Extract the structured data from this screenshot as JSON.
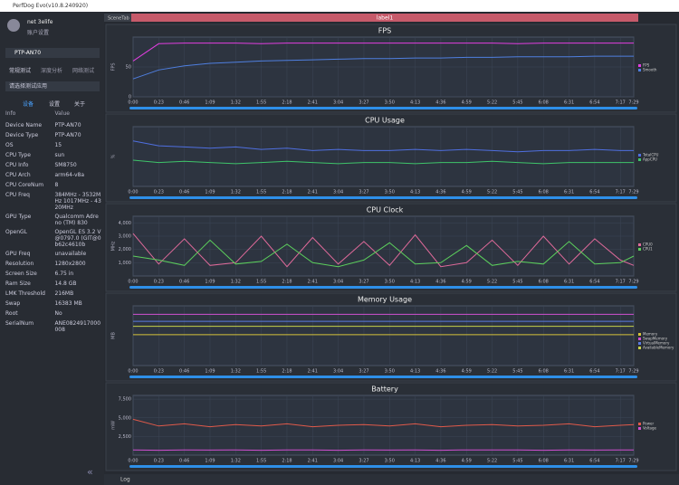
{
  "window": {
    "title": "PerfDog Evo(v10.8.240920)",
    "tabs": [
      "SceneTab",
      "label1"
    ],
    "log": "Log"
  },
  "account": {
    "name": "net 3elife",
    "settings": "账户设置"
  },
  "device": {
    "selected": "PTP-AN70",
    "modes": [
      "常规测试",
      "深度分析",
      "网络测试"
    ],
    "app_select": "请选择测试应用",
    "subtabs": [
      "设备",
      "设置",
      "关于"
    ],
    "header": [
      "Info",
      "Value"
    ],
    "rows": [
      [
        "Device Name",
        "PTP-AN70"
      ],
      [
        "Device Type",
        "PTP-AN70"
      ],
      [
        "OS",
        "15"
      ],
      [
        "CPU Type",
        "sun"
      ],
      [
        "CPU Info",
        "SM8750"
      ],
      [
        "CPU Arch",
        "arm64-v8a"
      ],
      [
        "CPU CoreNum",
        "8"
      ],
      [
        "CPU Freq",
        "384MHz - 3532MHz 1017MHz - 4320MHz"
      ],
      [
        "GPU Type",
        "Qualcomm Adreno (TM) 830"
      ],
      [
        "OpenGL",
        "OpenGL ES 3.2 V@0797.0 (GIT@0b62c4610b"
      ],
      [
        "GPU Freq",
        "unavailable"
      ],
      [
        "Resolution",
        "1280x2800"
      ],
      [
        "Screen Size",
        "6.75 in"
      ],
      [
        "Ram Size",
        "14.8 GB"
      ],
      [
        "LMK Threshold",
        "216MB"
      ],
      [
        "Swap",
        "16383 MB"
      ],
      [
        "Root",
        "No"
      ],
      [
        "SerialNum",
        "ANE0824917000008"
      ]
    ]
  },
  "chart_data": [
    {
      "type": "line",
      "title": "FPS",
      "y_label": "FPS",
      "xlim": [
        0,
        449
      ],
      "ylim": [
        0,
        100
      ],
      "yticks": [
        0,
        50
      ],
      "x": [
        0,
        23,
        46,
        69,
        92,
        115,
        138,
        161,
        184,
        207,
        230,
        253,
        276,
        299,
        322,
        345,
        368,
        391,
        414,
        437,
        449
      ],
      "xticks": [
        {
          "value": 0,
          "label": "0:00"
        },
        {
          "value": 23,
          "label": "0:23"
        },
        {
          "value": 46,
          "label": "0:46"
        },
        {
          "value": 69,
          "label": "1:09"
        },
        {
          "value": 92,
          "label": "1:32"
        },
        {
          "value": 115,
          "label": "1:55"
        },
        {
          "value": 138,
          "label": "2:18"
        },
        {
          "value": 161,
          "label": "2:41"
        },
        {
          "value": 184,
          "label": "3:04"
        },
        {
          "value": 207,
          "label": "3:27"
        },
        {
          "value": 230,
          "label": "3:50"
        },
        {
          "value": 253,
          "label": "4:13"
        },
        {
          "value": 276,
          "label": "4:36"
        },
        {
          "value": 299,
          "label": "4:59"
        },
        {
          "value": 322,
          "label": "5:22"
        },
        {
          "value": 345,
          "label": "5:45"
        },
        {
          "value": 368,
          "label": "6:08"
        },
        {
          "value": 391,
          "label": "6:31"
        },
        {
          "value": 414,
          "label": "6:54"
        },
        {
          "value": 437,
          "label": "7:17"
        },
        {
          "value": 449,
          "label": "7:29"
        }
      ],
      "series": [
        {
          "name": "FPS",
          "color": "#e23ee0",
          "values": [
            60,
            89,
            90,
            90,
            90,
            89,
            90,
            90,
            90,
            90,
            90,
            90,
            90,
            90,
            90,
            89,
            90,
            90,
            90,
            90,
            90
          ]
        },
        {
          "name": "Smooth",
          "color": "#4f7fe0",
          "values": [
            30,
            45,
            52,
            56,
            58,
            60,
            61,
            62,
            63,
            64,
            64,
            65,
            65,
            66,
            66,
            67,
            67,
            67,
            68,
            68,
            68
          ]
        }
      ]
    },
    {
      "type": "line",
      "title": "CPU Usage",
      "y_label": "%",
      "xlim": [
        0,
        449
      ],
      "ylim": [
        0,
        50
      ],
      "x": [
        0,
        23,
        46,
        69,
        92,
        115,
        138,
        161,
        184,
        207,
        230,
        253,
        276,
        299,
        322,
        345,
        368,
        391,
        414,
        437,
        449
      ],
      "xticks": [
        {
          "value": 0,
          "label": "0:00"
        },
        {
          "value": 23,
          "label": "0:23"
        },
        {
          "value": 46,
          "label": "0:46"
        },
        {
          "value": 69,
          "label": "1:09"
        },
        {
          "value": 92,
          "label": "1:32"
        },
        {
          "value": 115,
          "label": "1:55"
        },
        {
          "value": 138,
          "label": "2:18"
        },
        {
          "value": 161,
          "label": "2:41"
        },
        {
          "value": 184,
          "label": "3:04"
        },
        {
          "value": 207,
          "label": "3:27"
        },
        {
          "value": 230,
          "label": "3:50"
        },
        {
          "value": 253,
          "label": "4:13"
        },
        {
          "value": 276,
          "label": "4:36"
        },
        {
          "value": 299,
          "label": "4:59"
        },
        {
          "value": 322,
          "label": "5:22"
        },
        {
          "value": 345,
          "label": "5:45"
        },
        {
          "value": 368,
          "label": "6:08"
        },
        {
          "value": 391,
          "label": "6:31"
        },
        {
          "value": 414,
          "label": "6:54"
        },
        {
          "value": 437,
          "label": "7:17"
        },
        {
          "value": 449,
          "label": "7:29"
        }
      ],
      "series": [
        {
          "name": "TotalCPU",
          "color": "#4f6fe0",
          "values": [
            38,
            34,
            33,
            32,
            33,
            31,
            32,
            30,
            31,
            30,
            30,
            31,
            30,
            31,
            30,
            29,
            30,
            30,
            31,
            30,
            30
          ]
        },
        {
          "name": "AppCPU",
          "color": "#3fc46a",
          "values": [
            22,
            20,
            21,
            20,
            19,
            20,
            21,
            20,
            19,
            20,
            20,
            19,
            20,
            20,
            21,
            20,
            19,
            20,
            20,
            20,
            20
          ]
        }
      ]
    },
    {
      "type": "line",
      "title": "CPU Clock",
      "y_label": "MHz",
      "xlim": [
        0,
        449
      ],
      "ylim": [
        0,
        4500
      ],
      "yticks": [
        {
          "value": 1000,
          "label": "1,000"
        },
        {
          "value": 2000,
          "label": "2,000"
        },
        {
          "value": 3000,
          "label": "3,000"
        },
        {
          "value": 4000,
          "label": "4,000"
        }
      ],
      "x": [
        0,
        23,
        46,
        69,
        92,
        115,
        138,
        161,
        184,
        207,
        230,
        253,
        276,
        299,
        322,
        345,
        368,
        391,
        414,
        437,
        449
      ],
      "xticks": [
        {
          "value": 0,
          "label": "0:00"
        },
        {
          "value": 23,
          "label": "0:23"
        },
        {
          "value": 46,
          "label": "0:46"
        },
        {
          "value": 69,
          "label": "1:09"
        },
        {
          "value": 92,
          "label": "1:32"
        },
        {
          "value": 115,
          "label": "1:55"
        },
        {
          "value": 138,
          "label": "2:18"
        },
        {
          "value": 161,
          "label": "2:41"
        },
        {
          "value": 184,
          "label": "3:04"
        },
        {
          "value": 207,
          "label": "3:27"
        },
        {
          "value": 230,
          "label": "3:50"
        },
        {
          "value": 253,
          "label": "4:13"
        },
        {
          "value": 276,
          "label": "4:36"
        },
        {
          "value": 299,
          "label": "4:59"
        },
        {
          "value": 322,
          "label": "5:22"
        },
        {
          "value": 345,
          "label": "5:45"
        },
        {
          "value": 368,
          "label": "6:08"
        },
        {
          "value": 391,
          "label": "6:31"
        },
        {
          "value": 414,
          "label": "6:54"
        },
        {
          "value": 437,
          "label": "7:17"
        },
        {
          "value": 449,
          "label": "7:29"
        }
      ],
      "series": [
        {
          "name": "CPU0",
          "color": "#e06a9a",
          "values": [
            3200,
            900,
            2800,
            800,
            1000,
            3000,
            700,
            2900,
            900,
            2600,
            800,
            3100,
            700,
            1000,
            2700,
            800,
            3000,
            900,
            2800,
            1200,
            800
          ]
        },
        {
          "name": "CPU1",
          "color": "#5ccf5c",
          "values": [
            1500,
            1200,
            800,
            2700,
            900,
            1100,
            2400,
            1000,
            700,
            1200,
            2500,
            900,
            1000,
            2300,
            800,
            1100,
            900,
            2600,
            900,
            1000,
            1500
          ]
        }
      ]
    },
    {
      "type": "line",
      "title": "Memory Usage",
      "y_label": "MB",
      "xlim": [
        0,
        449
      ],
      "ylim": [
        0,
        12000
      ],
      "x": [
        0,
        23,
        46,
        69,
        92,
        115,
        138,
        161,
        184,
        207,
        230,
        253,
        276,
        299,
        322,
        345,
        368,
        391,
        414,
        437,
        449
      ],
      "xticks": [
        {
          "value": 0,
          "label": "0:00"
        },
        {
          "value": 23,
          "label": "0:23"
        },
        {
          "value": 46,
          "label": "0:46"
        },
        {
          "value": 69,
          "label": "1:09"
        },
        {
          "value": 92,
          "label": "1:32"
        },
        {
          "value": 115,
          "label": "1:55"
        },
        {
          "value": 138,
          "label": "2:18"
        },
        {
          "value": 161,
          "label": "2:41"
        },
        {
          "value": 184,
          "label": "3:04"
        },
        {
          "value": 207,
          "label": "3:27"
        },
        {
          "value": 230,
          "label": "3:50"
        },
        {
          "value": 253,
          "label": "4:13"
        },
        {
          "value": 276,
          "label": "4:36"
        },
        {
          "value": 299,
          "label": "4:59"
        },
        {
          "value": 322,
          "label": "5:22"
        },
        {
          "value": 345,
          "label": "5:45"
        },
        {
          "value": 368,
          "label": "6:08"
        },
        {
          "value": 391,
          "label": "6:31"
        },
        {
          "value": 414,
          "label": "6:54"
        },
        {
          "value": 437,
          "label": "7:17"
        },
        {
          "value": 449,
          "label": "7:29"
        }
      ],
      "series": [
        {
          "name": "Memory",
          "color": "#d6c23a",
          "values": [
            6200,
            6200,
            6200,
            6200,
            6200,
            6200,
            6200,
            6200,
            6200,
            6200,
            6200,
            6200,
            6200,
            6200,
            6200,
            6200,
            6200,
            6200,
            6200,
            6200,
            6200
          ]
        },
        {
          "name": "SwapMemory",
          "color": "#d04fd0",
          "values": [
            10300,
            10300,
            10300,
            10300,
            10300,
            10300,
            10300,
            10300,
            10300,
            10300,
            10300,
            10300,
            10300,
            10300,
            10300,
            10300,
            10300,
            10300,
            10300,
            10300,
            10300
          ]
        },
        {
          "name": "VirtualMemory",
          "color": "#5a7be0",
          "values": [
            8900,
            8900,
            8900,
            8900,
            8900,
            8900,
            8900,
            8900,
            8900,
            8900,
            8900,
            8900,
            8900,
            8900,
            8900,
            8900,
            8900,
            8900,
            8900,
            8900,
            8900
          ]
        },
        {
          "name": "AvailableMemory",
          "color": "#c8d24a",
          "values": [
            7900,
            7900,
            7900,
            7900,
            7900,
            7900,
            7900,
            7900,
            7900,
            7900,
            7900,
            7900,
            7900,
            7900,
            7900,
            7900,
            7900,
            7900,
            7900,
            7900,
            7900
          ]
        }
      ]
    },
    {
      "type": "line",
      "title": "Battery",
      "y_label": "mW",
      "xlim": [
        0,
        449
      ],
      "ylim": [
        0,
        8000
      ],
      "yticks": [
        {
          "value": 2500,
          "label": "2,500"
        },
        {
          "value": 5000,
          "label": "5,000"
        },
        {
          "value": 7500,
          "label": "7,500"
        }
      ],
      "x": [
        0,
        23,
        46,
        69,
        92,
        115,
        138,
        161,
        184,
        207,
        230,
        253,
        276,
        299,
        322,
        345,
        368,
        391,
        414,
        437,
        449
      ],
      "xticks": [
        {
          "value": 0,
          "label": "0:00"
        },
        {
          "value": 23,
          "label": "0:23"
        },
        {
          "value": 46,
          "label": "0:46"
        },
        {
          "value": 69,
          "label": "1:09"
        },
        {
          "value": 92,
          "label": "1:32"
        },
        {
          "value": 115,
          "label": "1:55"
        },
        {
          "value": 138,
          "label": "2:18"
        },
        {
          "value": 161,
          "label": "2:41"
        },
        {
          "value": 184,
          "label": "3:04"
        },
        {
          "value": 207,
          "label": "3:27"
        },
        {
          "value": 230,
          "label": "3:50"
        },
        {
          "value": 253,
          "label": "4:13"
        },
        {
          "value": 276,
          "label": "4:36"
        },
        {
          "value": 299,
          "label": "4:59"
        },
        {
          "value": 322,
          "label": "5:22"
        },
        {
          "value": 345,
          "label": "5:45"
        },
        {
          "value": 368,
          "label": "6:08"
        },
        {
          "value": 391,
          "label": "6:31"
        },
        {
          "value": 414,
          "label": "6:54"
        },
        {
          "value": 437,
          "label": "7:17"
        },
        {
          "value": 449,
          "label": "7:29"
        }
      ],
      "series": [
        {
          "name": "Power",
          "color": "#e05a4a",
          "values": [
            4800,
            3900,
            4200,
            3800,
            4100,
            3900,
            4200,
            3800,
            4000,
            4100,
            3900,
            4200,
            3800,
            4000,
            4100,
            3900,
            4000,
            4200,
            3800,
            4000,
            4100
          ]
        },
        {
          "name": "Voltage",
          "color": "#d04fd0",
          "values": [
            700,
            650,
            700,
            680,
            700,
            650,
            690,
            700,
            660,
            700,
            680,
            700,
            650,
            700,
            690,
            700,
            660,
            700,
            680,
            700,
            690
          ]
        }
      ]
    }
  ]
}
